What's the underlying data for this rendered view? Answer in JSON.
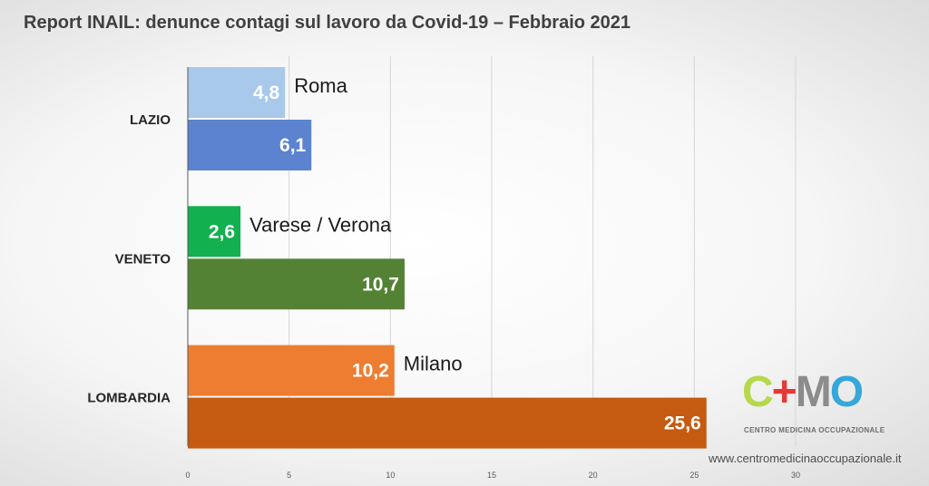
{
  "header": {
    "title": "Report INAIL: denunce contagi sul lavoro da Covid-19 – Febbraio 2021"
  },
  "chart_data": {
    "type": "bar",
    "orientation": "horizontal",
    "title": "Report INAIL: denunce contagi sul lavoro da Covid-19 – Febbraio 2021",
    "xlabel": "",
    "ylabel": "",
    "xlim": [
      0,
      30
    ],
    "xticks": [
      "0",
      "5",
      "10",
      "15",
      "20",
      "25",
      "30"
    ],
    "grid": true,
    "categories": [
      "LAZIO",
      "VENETO",
      "LOMBARDIA"
    ],
    "bars": [
      {
        "category": "LAZIO",
        "value": 4.8,
        "value_label": "4,8",
        "annotation": "Roma",
        "color": "#a9c9ea"
      },
      {
        "category": "LAZIO",
        "value": 6.1,
        "value_label": "6,1",
        "annotation": "",
        "color": "#5b83cf"
      },
      {
        "category": "VENETO",
        "value": 2.6,
        "value_label": "2,6",
        "annotation": "Varese / Verona",
        "color": "#12b04f"
      },
      {
        "category": "VENETO",
        "value": 10.7,
        "value_label": "10,7",
        "annotation": "",
        "color": "#548235"
      },
      {
        "category": "LOMBARDIA",
        "value": 10.2,
        "value_label": "10,2",
        "annotation": "Milano",
        "color": "#ed7d31"
      },
      {
        "category": "LOMBARDIA",
        "value": 25.6,
        "value_label": "25,6",
        "annotation": "",
        "color": "#c55a11"
      }
    ]
  },
  "branding": {
    "logo_letters": {
      "c": "C",
      "plus": "+",
      "m": "M",
      "o": "O"
    },
    "logo_subtitle": "CENTRO MEDICINA OCCUPAZIONALE",
    "website": "www.centromedicinaoccupazionale.it",
    "colors": {
      "c": "#b7d84a",
      "plus": "#e53935",
      "m": "#8c8c8c",
      "o": "#35a7d8"
    }
  }
}
